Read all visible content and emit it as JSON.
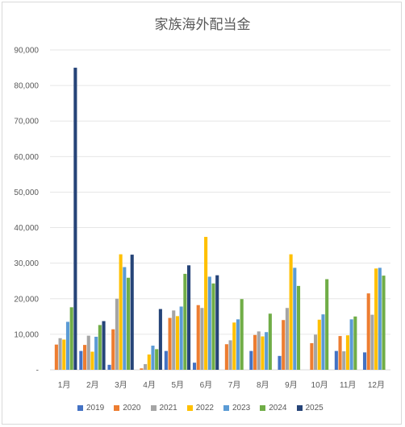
{
  "chart_data": {
    "type": "bar",
    "title": "家族海外配当金",
    "categories": [
      "1月",
      "2月",
      "3月",
      "4月",
      "5月",
      "6月",
      "7月",
      "8月",
      "9月",
      "10月",
      "11月",
      "12月"
    ],
    "y_ticks": [
      "-",
      "10,000",
      "20,000",
      "30,000",
      "40,000",
      "50,000",
      "60,000",
      "70,000",
      "80,000",
      "90,000"
    ],
    "ylim": [
      0,
      90000
    ],
    "grid": true,
    "legend_position": "bottom",
    "series": [
      {
        "name": "2019",
        "color": "#4472c4",
        "values": [
          0,
          5300,
          1400,
          0,
          5300,
          2000,
          0,
          5300,
          3900,
          0,
          5300,
          4900
        ]
      },
      {
        "name": "2020",
        "color": "#ed7d31",
        "values": [
          7100,
          7000,
          11400,
          400,
          14600,
          18200,
          7200,
          9800,
          14000,
          7500,
          9500,
          21500
        ]
      },
      {
        "name": "2021",
        "color": "#a5a5a5",
        "values": [
          8900,
          9600,
          20000,
          1600,
          16700,
          17400,
          8300,
          10800,
          17400,
          9900,
          5200,
          15500
        ]
      },
      {
        "name": "2022",
        "color": "#ffc000",
        "values": [
          8500,
          5100,
          32500,
          4300,
          15100,
          37400,
          13300,
          9400,
          32500,
          14100,
          9700,
          28500
        ]
      },
      {
        "name": "2023",
        "color": "#5b9bd5",
        "values": [
          13500,
          9300,
          28900,
          6800,
          17800,
          26200,
          14200,
          10600,
          28700,
          15600,
          14200,
          28700
        ]
      },
      {
        "name": "2024",
        "color": "#70ad47",
        "values": [
          17600,
          12600,
          25900,
          5800,
          27000,
          24300,
          19900,
          15800,
          23600,
          25500,
          15000,
          26500
        ]
      },
      {
        "name": "2025",
        "color": "#264478",
        "values": [
          85000,
          13700,
          32400,
          17100,
          29400,
          26600,
          0,
          0,
          0,
          0,
          0,
          0
        ]
      }
    ]
  }
}
